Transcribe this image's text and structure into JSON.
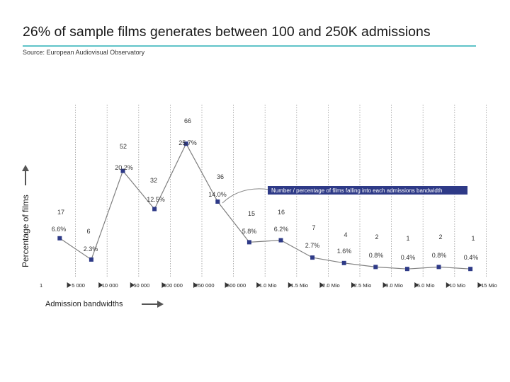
{
  "header": {
    "title": "26% of sample films generates between 100 and 250K admissions",
    "source": "Source: European Audiovisual Observatory"
  },
  "chart_data": {
    "type": "line",
    "title": "26% of sample films generates between 100 and 250K admissions",
    "xlabel": "Admission bandwidths",
    "ylabel": "Percentage of films",
    "boundaries": [
      "1",
      "5 000",
      "10 000",
      "50 000",
      "100 000",
      "250 000",
      "500 000",
      "1.0 Mio",
      "1.5 Mio",
      "2.0 Mio",
      "2.5 Mio",
      "3.0 Mio",
      "5.0 Mio",
      "10 Mio",
      "15 Mio"
    ],
    "series": [
      {
        "counts": [
          17,
          6,
          52,
          32,
          66,
          36,
          15,
          16,
          7,
          4,
          2,
          1,
          2,
          1
        ],
        "percents": [
          "6.6%",
          "2.3%",
          "20.2%",
          "12.5%",
          "25.7%",
          "14.0%",
          "5.8%",
          "6.2%",
          "2.7%",
          "1.6%",
          "0.8%",
          "0.4%",
          "0.8%",
          "0.4%"
        ],
        "values": [
          6.6,
          2.3,
          20.2,
          12.5,
          25.7,
          14.0,
          5.8,
          6.2,
          2.7,
          1.6,
          0.8,
          0.4,
          0.8,
          0.4
        ]
      }
    ],
    "callout": "Number / percentage of films falling into each admissions bandwidth",
    "grid": true,
    "colors": {
      "line": "#7f7f7f",
      "marker": "#2e3a87",
      "callout_bg": "#2e3a87",
      "accent_rule": "#5fc3c8",
      "grid": "#999999"
    }
  }
}
